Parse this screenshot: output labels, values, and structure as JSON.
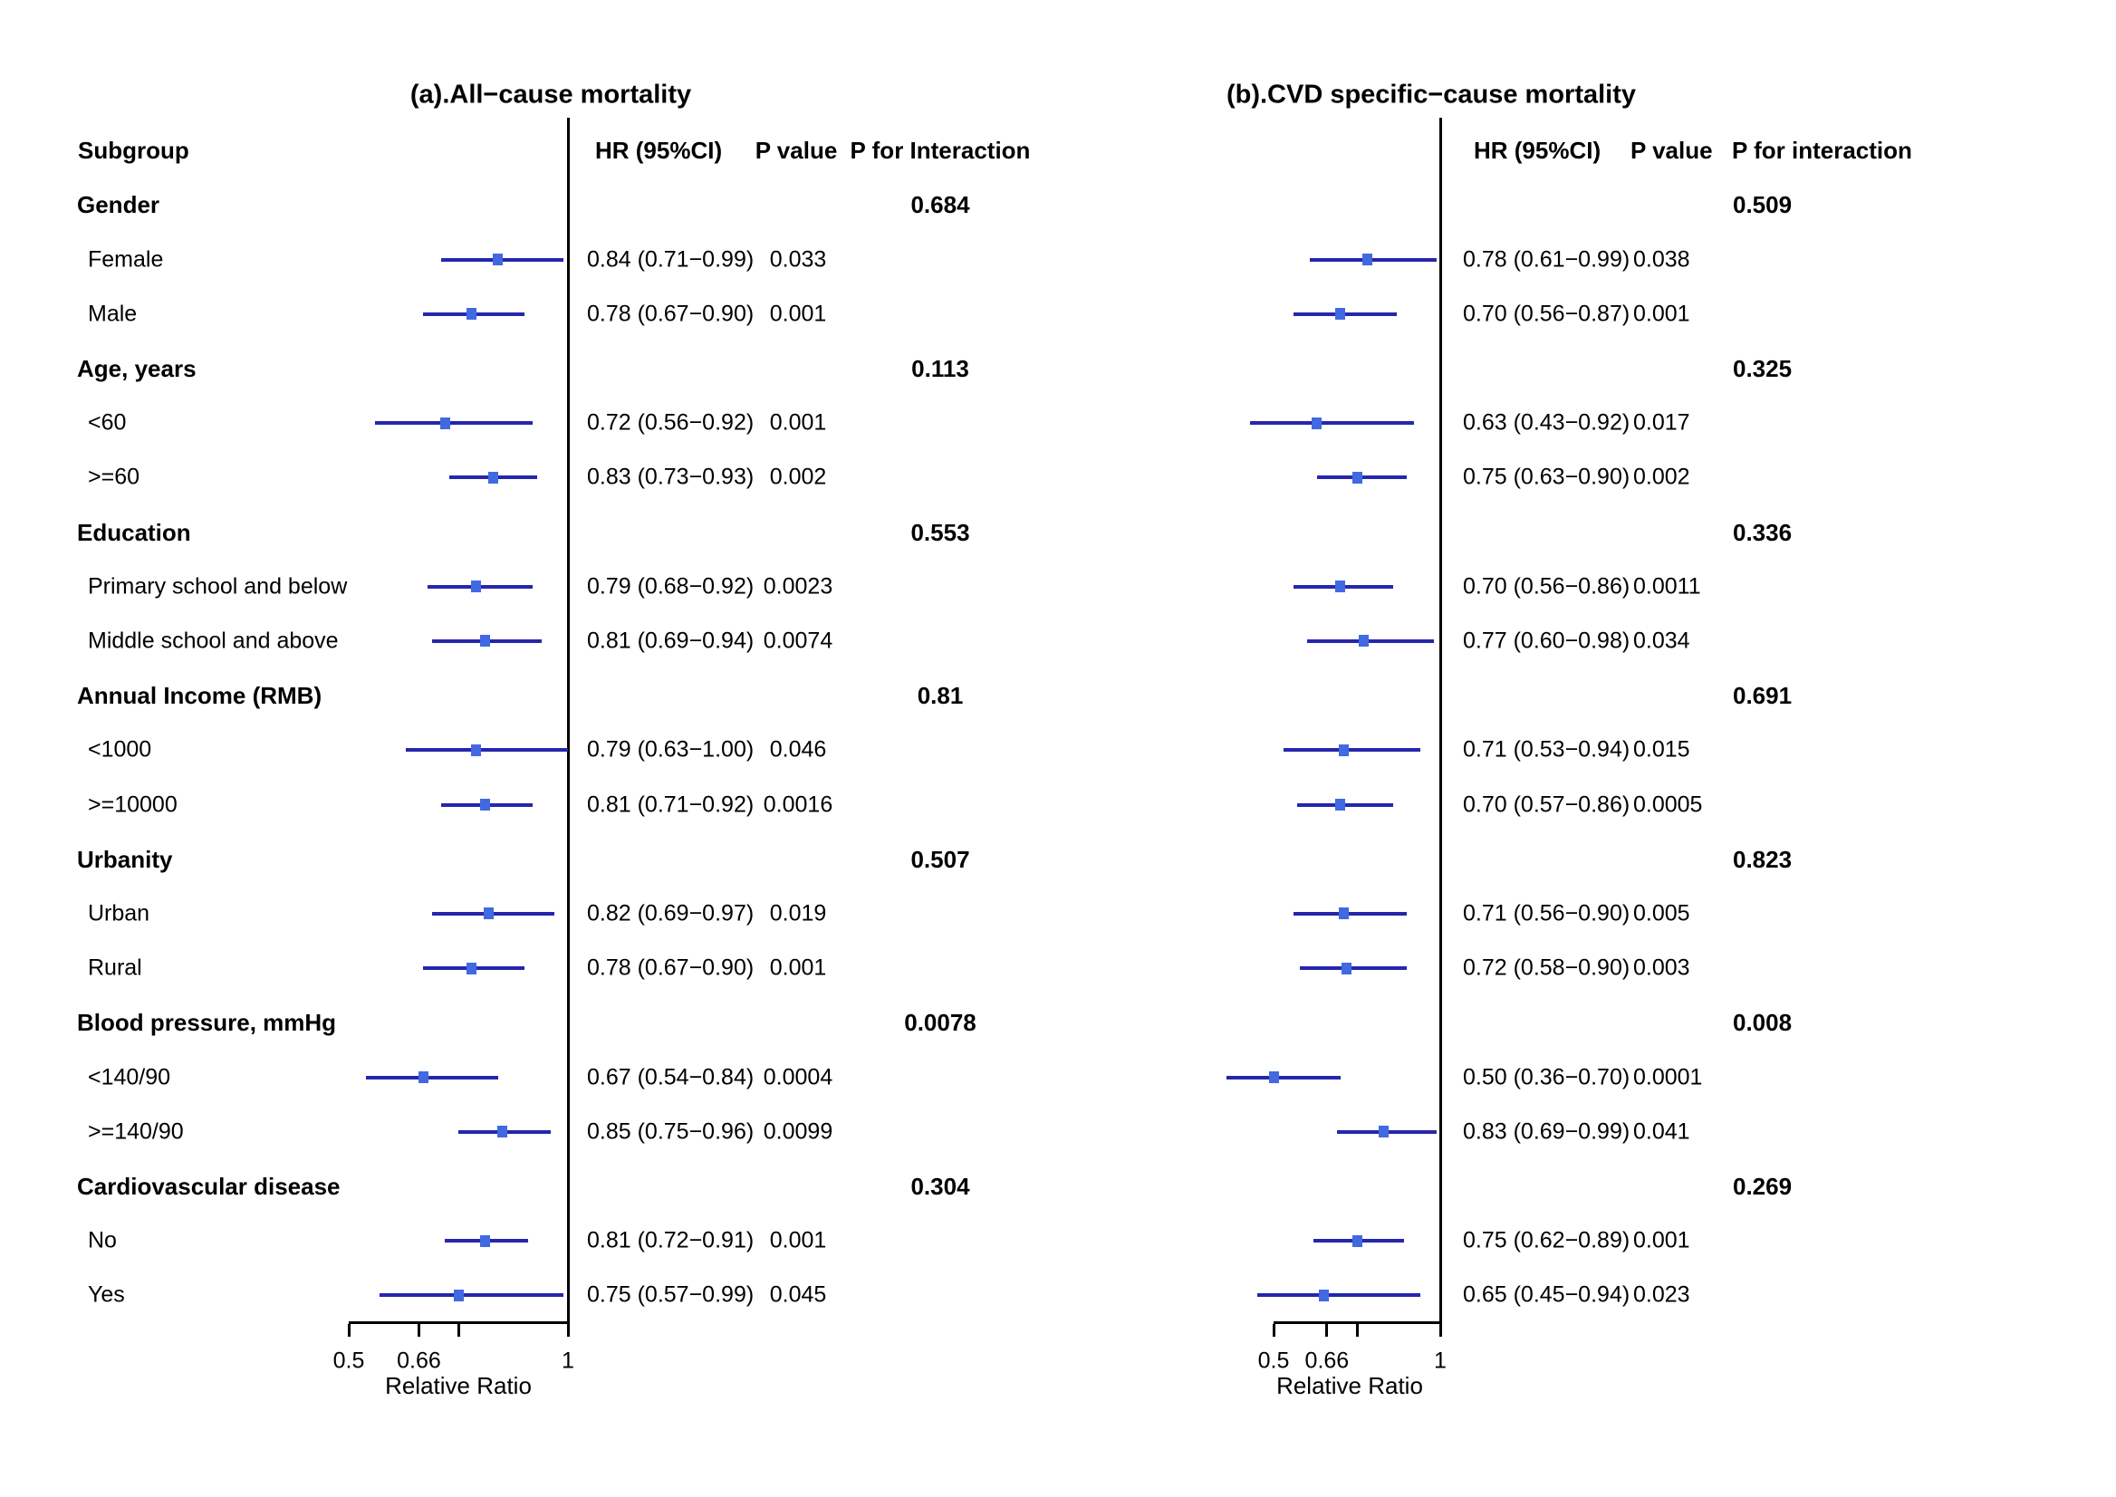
{
  "figure": {
    "background": "#ffffff",
    "text_color": "#000000",
    "ci_line_color": "#2626AD",
    "marker_color": "#4169E1",
    "axis_color": "#000000"
  },
  "chart_data": [
    {
      "type": "scatter",
      "panel": "a",
      "title": "(a).All−cause mortality",
      "xlabel": "Relative Ratio",
      "xlim": [
        0.5,
        1
      ],
      "xticks": [
        0.5,
        0.66,
        0.75,
        1
      ],
      "xtick_labels": [
        "0.5",
        "0.66",
        "",
        "1"
      ],
      "reference_line": 1,
      "columns": [
        "Subgroup",
        "HR (95%CI)",
        "P value",
        "P for Interaction"
      ],
      "rows": [
        {
          "kind": "group",
          "label": "Gender",
          "p_interaction": "0.684"
        },
        {
          "kind": "item",
          "label": "Female",
          "hr": 0.84,
          "ci_low": 0.71,
          "ci_high": 0.99,
          "hr_text": "0.84 (0.71−0.99)",
          "p_value": "0.033"
        },
        {
          "kind": "item",
          "label": "Male",
          "hr": 0.78,
          "ci_low": 0.67,
          "ci_high": 0.9,
          "hr_text": "0.78 (0.67−0.90)",
          "p_value": "0.001"
        },
        {
          "kind": "group",
          "label": "Age, years",
          "p_interaction": "0.113"
        },
        {
          "kind": "item",
          "label": "<60",
          "hr": 0.72,
          "ci_low": 0.56,
          "ci_high": 0.92,
          "hr_text": "0.72 (0.56−0.92)",
          "p_value": "0.001"
        },
        {
          "kind": "item",
          "label": ">=60",
          "hr": 0.83,
          "ci_low": 0.73,
          "ci_high": 0.93,
          "hr_text": "0.83 (0.73−0.93)",
          "p_value": "0.002"
        },
        {
          "kind": "group",
          "label": "Education",
          "p_interaction": "0.553"
        },
        {
          "kind": "item",
          "label": "Primary school and below",
          "hr": 0.79,
          "ci_low": 0.68,
          "ci_high": 0.92,
          "hr_text": "0.79 (0.68−0.92)",
          "p_value": "0.0023"
        },
        {
          "kind": "item",
          "label": "Middle school and above",
          "hr": 0.81,
          "ci_low": 0.69,
          "ci_high": 0.94,
          "hr_text": "0.81 (0.69−0.94)",
          "p_value": "0.0074"
        },
        {
          "kind": "group",
          "label": "Annual Income (RMB)",
          "p_interaction": "0.81"
        },
        {
          "kind": "item",
          "label": "<1000",
          "hr": 0.79,
          "ci_low": 0.63,
          "ci_high": 1.0,
          "hr_text": "0.79 (0.63−1.00)",
          "p_value": "0.046"
        },
        {
          "kind": "item",
          "label": ">=10000",
          "hr": 0.81,
          "ci_low": 0.71,
          "ci_high": 0.92,
          "hr_text": "0.81 (0.71−0.92)",
          "p_value": "0.0016"
        },
        {
          "kind": "group",
          "label": "Urbanity",
          "p_interaction": "0.507"
        },
        {
          "kind": "item",
          "label": "Urban",
          "hr": 0.82,
          "ci_low": 0.69,
          "ci_high": 0.97,
          "hr_text": "0.82 (0.69−0.97)",
          "p_value": "0.019"
        },
        {
          "kind": "item",
          "label": "Rural",
          "hr": 0.78,
          "ci_low": 0.67,
          "ci_high": 0.9,
          "hr_text": "0.78 (0.67−0.90)",
          "p_value": "0.001"
        },
        {
          "kind": "group",
          "label": "Blood pressure, mmHg",
          "p_interaction": "0.0078"
        },
        {
          "kind": "item",
          "label": "<140/90",
          "hr": 0.67,
          "ci_low": 0.54,
          "ci_high": 0.84,
          "hr_text": "0.67 (0.54−0.84)",
          "p_value": "0.0004"
        },
        {
          "kind": "item",
          "label": ">=140/90",
          "hr": 0.85,
          "ci_low": 0.75,
          "ci_high": 0.96,
          "hr_text": "0.85 (0.75−0.96)",
          "p_value": "0.0099"
        },
        {
          "kind": "group",
          "label": "Cardiovascular disease",
          "p_interaction": "0.304"
        },
        {
          "kind": "item",
          "label": "No",
          "hr": 0.81,
          "ci_low": 0.72,
          "ci_high": 0.91,
          "hr_text": "0.81 (0.72−0.91)",
          "p_value": "0.001"
        },
        {
          "kind": "item",
          "label": "Yes",
          "hr": 0.75,
          "ci_low": 0.57,
          "ci_high": 0.99,
          "hr_text": "0.75 (0.57−0.99)",
          "p_value": "0.045"
        }
      ]
    },
    {
      "type": "scatter",
      "panel": "b",
      "title": "(b).CVD specific−cause mortality",
      "xlabel": "Relative Ratio",
      "xlim": [
        0.5,
        1
      ],
      "xticks": [
        0.5,
        0.66,
        0.75,
        1
      ],
      "xtick_labels": [
        "0.5",
        "0.66",
        "",
        "1"
      ],
      "reference_line": 1,
      "columns": [
        "HR (95%CI)",
        "P value",
        "P for interaction"
      ],
      "rows": [
        {
          "kind": "group",
          "label": "Gender",
          "p_interaction": "0.509"
        },
        {
          "kind": "item",
          "label": "Female",
          "hr": 0.78,
          "ci_low": 0.61,
          "ci_high": 0.99,
          "hr_text": "0.78 (0.61−0.99)",
          "p_value": "0.038"
        },
        {
          "kind": "item",
          "label": "Male",
          "hr": 0.7,
          "ci_low": 0.56,
          "ci_high": 0.87,
          "hr_text": "0.70 (0.56−0.87)",
          "p_value": "0.001"
        },
        {
          "kind": "group",
          "label": "Age, years",
          "p_interaction": "0.325"
        },
        {
          "kind": "item",
          "label": "<60",
          "hr": 0.63,
          "ci_low": 0.43,
          "ci_high": 0.92,
          "hr_text": "0.63 (0.43−0.92)",
          "p_value": "0.017"
        },
        {
          "kind": "item",
          "label": ">=60",
          "hr": 0.75,
          "ci_low": 0.63,
          "ci_high": 0.9,
          "hr_text": "0.75 (0.63−0.90)",
          "p_value": "0.002"
        },
        {
          "kind": "group",
          "label": "Education",
          "p_interaction": "0.336"
        },
        {
          "kind": "item",
          "label": "Primary school and below",
          "hr": 0.7,
          "ci_low": 0.56,
          "ci_high": 0.86,
          "hr_text": "0.70 (0.56−0.86)",
          "p_value": "0.0011"
        },
        {
          "kind": "item",
          "label": "Middle school and above",
          "hr": 0.77,
          "ci_low": 0.6,
          "ci_high": 0.98,
          "hr_text": "0.77 (0.60−0.98)",
          "p_value": "0.034"
        },
        {
          "kind": "group",
          "label": "Annual Income (RMB)",
          "p_interaction": "0.691"
        },
        {
          "kind": "item",
          "label": "<1000",
          "hr": 0.71,
          "ci_low": 0.53,
          "ci_high": 0.94,
          "hr_text": "0.71 (0.53−0.94)",
          "p_value": "0.015"
        },
        {
          "kind": "item",
          "label": ">=10000",
          "hr": 0.7,
          "ci_low": 0.57,
          "ci_high": 0.86,
          "hr_text": "0.70 (0.57−0.86)",
          "p_value": "0.0005"
        },
        {
          "kind": "group",
          "label": "Urbanity",
          "p_interaction": "0.823"
        },
        {
          "kind": "item",
          "label": "Urban",
          "hr": 0.71,
          "ci_low": 0.56,
          "ci_high": 0.9,
          "hr_text": "0.71 (0.56−0.90)",
          "p_value": "0.005"
        },
        {
          "kind": "item",
          "label": "Rural",
          "hr": 0.72,
          "ci_low": 0.58,
          "ci_high": 0.9,
          "hr_text": "0.72 (0.58−0.90)",
          "p_value": "0.003"
        },
        {
          "kind": "group",
          "label": "Blood pressure, mmHg",
          "p_interaction": "0.008"
        },
        {
          "kind": "item",
          "label": "<140/90",
          "hr": 0.5,
          "ci_low": 0.36,
          "ci_high": 0.7,
          "hr_text": "0.50 (0.36−0.70)",
          "p_value": "0.0001"
        },
        {
          "kind": "item",
          "label": ">=140/90",
          "hr": 0.83,
          "ci_low": 0.69,
          "ci_high": 0.99,
          "hr_text": "0.83 (0.69−0.99)",
          "p_value": "0.041"
        },
        {
          "kind": "group",
          "label": "Cardiovascular disease",
          "p_interaction": "0.269"
        },
        {
          "kind": "item",
          "label": "No",
          "hr": 0.75,
          "ci_low": 0.62,
          "ci_high": 0.89,
          "hr_text": "0.75 (0.62−0.89)",
          "p_value": "0.001"
        },
        {
          "kind": "item",
          "label": "Yes",
          "hr": 0.65,
          "ci_low": 0.45,
          "ci_high": 0.94,
          "hr_text": "0.65 (0.45−0.94)",
          "p_value": "0.023"
        }
      ]
    }
  ]
}
